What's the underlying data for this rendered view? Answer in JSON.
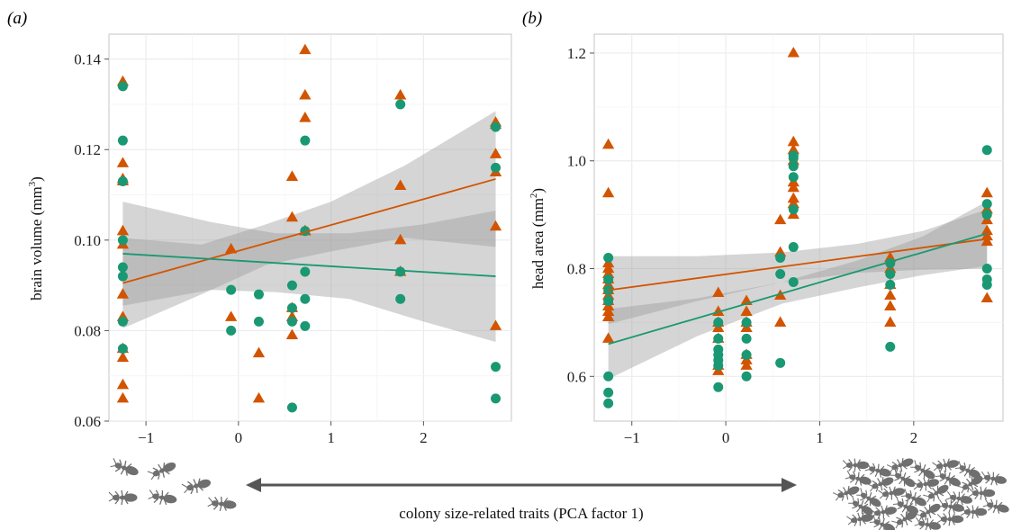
{
  "figure": {
    "bottom_caption": "colony size-related traits (PCA factor 1)",
    "ant_icons": [
      "small-colony-ant-icon",
      "large-colony-ant-icon"
    ]
  },
  "colors": {
    "orange": "#d35400",
    "green": "#1a9873",
    "panel_bg": "#ffffff",
    "grid": "#ececec",
    "ribbon": "#9a9a9a",
    "arrow": "#555555"
  },
  "chart_data": [
    {
      "panel_label": "(a)",
      "type": "scatter",
      "xlabel": "",
      "ylabel": "brain volume (mm",
      "ylabel_sup": "3",
      "ylabel_close": ")",
      "xlim": [
        -1.4,
        2.95
      ],
      "ylim": [
        0.06,
        0.1455
      ],
      "xticks": [
        -1,
        0,
        1,
        2
      ],
      "xtick_labels": [
        "−1",
        "0",
        "1",
        "2"
      ],
      "yticks": [
        0.06,
        0.08,
        0.1,
        0.12,
        0.14
      ],
      "ytick_labels": [
        "0.06",
        "0.08",
        "0.10",
        "0.12",
        "0.14"
      ],
      "grid": true,
      "series": [
        {
          "color": "orange",
          "marker": "triangle",
          "x": [
            -1.25,
            -1.25,
            -1.25,
            -1.25,
            -1.25,
            -1.25,
            -1.25,
            -1.25,
            -1.25,
            -1.25,
            -1.25,
            -1.25,
            -0.08,
            -0.08,
            0.22,
            0.22,
            0.58,
            0.58,
            0.58,
            0.58,
            0.58,
            0.72,
            0.72,
            0.72,
            0.72,
            0.72,
            1.75,
            1.75,
            1.75,
            1.75,
            2.78,
            2.78,
            2.78,
            2.78,
            2.78,
            2.78
          ],
          "y": [
            0.135,
            0.117,
            0.113,
            0.102,
            0.099,
            0.088,
            0.083,
            0.076,
            0.074,
            0.068,
            0.065,
            0.1135,
            0.098,
            0.083,
            0.075,
            0.065,
            0.114,
            0.105,
            0.085,
            0.079,
            0.083,
            0.142,
            0.132,
            0.127,
            0.102,
            0.102,
            0.132,
            0.112,
            0.1,
            0.093,
            0.126,
            0.119,
            0.115,
            0.103,
            0.081,
            0.1255
          ],
          "fit": [
            [
              -1.25,
              0.0905
            ],
            [
              2.78,
              0.1135
            ]
          ],
          "ci_upper": [
            [
              -1.25,
              0.1005
            ],
            [
              -0.4,
              0.099
            ],
            [
              0.3,
              0.1035
            ],
            [
              1.0,
              0.1085
            ],
            [
              1.8,
              0.1165
            ],
            [
              2.78,
              0.1285
            ]
          ],
          "ci_lower": [
            [
              -1.25,
              0.0805
            ],
            [
              -0.4,
              0.088
            ],
            [
              0.3,
              0.0945
            ],
            [
              1.0,
              0.0975
            ],
            [
              1.8,
              0.1005
            ],
            [
              2.78,
              0.0985
            ]
          ]
        },
        {
          "color": "green",
          "marker": "circle",
          "x": [
            -1.25,
            -1.25,
            -1.25,
            -1.25,
            -1.25,
            -1.25,
            -1.25,
            -1.25,
            -0.08,
            -0.08,
            0.22,
            0.22,
            0.58,
            0.58,
            0.58,
            0.58,
            0.72,
            0.72,
            0.72,
            0.72,
            0.72,
            1.75,
            1.75,
            1.75,
            2.78,
            2.78,
            2.78,
            2.78
          ],
          "y": [
            0.134,
            0.122,
            0.113,
            0.1,
            0.094,
            0.092,
            0.082,
            0.076,
            0.089,
            0.08,
            0.088,
            0.082,
            0.09,
            0.085,
            0.082,
            0.063,
            0.122,
            0.102,
            0.093,
            0.087,
            0.081,
            0.13,
            0.093,
            0.087,
            0.125,
            0.116,
            0.072,
            0.065
          ],
          "fit": [
            [
              -1.25,
              0.097
            ],
            [
              2.78,
              0.092
            ]
          ],
          "ci_upper": [
            [
              -1.25,
              0.1085
            ],
            [
              -0.3,
              0.104
            ],
            [
              0.4,
              0.1015
            ],
            [
              1.2,
              0.1015
            ],
            [
              2.0,
              0.1035
            ],
            [
              2.78,
              0.1065
            ]
          ],
          "ci_lower": [
            [
              -1.25,
              0.0855
            ],
            [
              -0.3,
              0.089
            ],
            [
              0.4,
              0.0885
            ],
            [
              1.2,
              0.087
            ],
            [
              2.0,
              0.082
            ],
            [
              2.78,
              0.0775
            ]
          ]
        }
      ]
    },
    {
      "panel_label": "(b)",
      "type": "scatter",
      "xlabel": "",
      "ylabel": "head area (mm",
      "ylabel_sup": "2",
      "ylabel_close": ")",
      "xlim": [
        -1.4,
        2.95
      ],
      "ylim": [
        0.517,
        1.235
      ],
      "xticks": [
        -1,
        0,
        1,
        2
      ],
      "xtick_labels": [
        "−1",
        "0",
        "1",
        "2"
      ],
      "yticks": [
        0.6,
        0.8,
        1.0,
        1.2
      ],
      "ytick_labels": [
        "0.6",
        "0.8",
        "1.0",
        "1.2"
      ],
      "grid": true,
      "series": [
        {
          "color": "orange",
          "marker": "triangle",
          "x": [
            -1.25,
            -1.25,
            -1.25,
            -1.25,
            -1.25,
            -1.25,
            -1.25,
            -1.25,
            -1.25,
            -1.25,
            -1.25,
            -1.25,
            -1.25,
            -1.25,
            -0.08,
            -0.08,
            -0.08,
            -0.08,
            -0.08,
            -0.08,
            -0.08,
            0.22,
            0.22,
            0.22,
            0.22,
            0.22,
            0.22,
            0.22,
            0.58,
            0.58,
            0.58,
            0.58,
            0.72,
            0.72,
            0.72,
            0.72,
            0.72,
            0.72,
            0.72,
            0.72,
            0.72,
            1.75,
            1.75,
            1.75,
            1.75,
            1.75,
            1.75,
            2.78,
            2.78,
            2.78,
            2.78,
            2.78,
            2.78,
            2.78
          ],
          "y": [
            1.03,
            0.94,
            0.81,
            0.8,
            0.79,
            0.78,
            0.77,
            0.76,
            0.75,
            0.74,
            0.73,
            0.72,
            0.71,
            0.67,
            0.755,
            0.72,
            0.7,
            0.69,
            0.67,
            0.62,
            0.61,
            0.74,
            0.72,
            0.7,
            0.69,
            0.64,
            0.63,
            0.62,
            0.89,
            0.83,
            0.75,
            0.7,
            1.2,
            1.035,
            1.02,
            1.0,
            0.96,
            0.95,
            0.93,
            0.92,
            0.9,
            0.82,
            0.8,
            0.77,
            0.75,
            0.73,
            0.7,
            0.94,
            0.91,
            0.89,
            0.87,
            0.86,
            0.85,
            0.745
          ],
          "fit": [
            [
              -1.25,
              0.76
            ],
            [
              2.78,
              0.855
            ]
          ],
          "ci_upper": [
            [
              -1.25,
              0.823
            ],
            [
              -0.3,
              0.823
            ],
            [
              0.6,
              0.83
            ],
            [
              1.4,
              0.846
            ],
            [
              2.1,
              0.87
            ],
            [
              2.78,
              0.91
            ]
          ],
          "ci_lower": [
            [
              -1.25,
              0.697
            ],
            [
              -0.3,
              0.74
            ],
            [
              0.6,
              0.775
            ],
            [
              1.4,
              0.792
            ],
            [
              2.1,
              0.798
            ],
            [
              2.78,
              0.8
            ]
          ]
        },
        {
          "color": "green",
          "marker": "circle",
          "x": [
            -1.25,
            -1.25,
            -1.25,
            -1.25,
            -1.25,
            -1.25,
            -1.25,
            -0.08,
            -0.08,
            -0.08,
            -0.08,
            -0.08,
            -0.08,
            -0.08,
            0.22,
            0.22,
            0.22,
            0.22,
            0.58,
            0.58,
            0.58,
            0.72,
            0.72,
            0.72,
            0.72,
            0.72,
            0.72,
            0.72,
            1.75,
            1.75,
            1.75,
            1.75,
            2.78,
            2.78,
            2.78,
            2.78,
            2.78,
            2.78
          ],
          "y": [
            0.78,
            0.76,
            0.74,
            0.6,
            0.57,
            0.55,
            0.82,
            0.7,
            0.67,
            0.65,
            0.64,
            0.63,
            0.62,
            0.58,
            0.7,
            0.67,
            0.64,
            0.6,
            0.82,
            0.79,
            0.625,
            1.01,
            0.99,
            0.97,
            0.91,
            0.84,
            0.775,
            1.005,
            0.81,
            0.79,
            0.77,
            0.655,
            1.02,
            0.92,
            0.9,
            0.8,
            0.78,
            0.77
          ],
          "fit": [
            [
              -1.25,
              0.66
            ],
            [
              2.78,
              0.865
            ]
          ],
          "ci_upper": [
            [
              -1.25,
              0.725
            ],
            [
              -0.3,
              0.745
            ],
            [
              0.6,
              0.775
            ],
            [
              1.4,
              0.815
            ],
            [
              2.1,
              0.86
            ],
            [
              2.78,
              0.925
            ]
          ],
          "ci_lower": [
            [
              -1.25,
              0.595
            ],
            [
              -0.3,
              0.675
            ],
            [
              0.6,
              0.735
            ],
            [
              1.4,
              0.765
            ],
            [
              2.1,
              0.788
            ],
            [
              2.78,
              0.805
            ]
          ]
        }
      ]
    }
  ]
}
